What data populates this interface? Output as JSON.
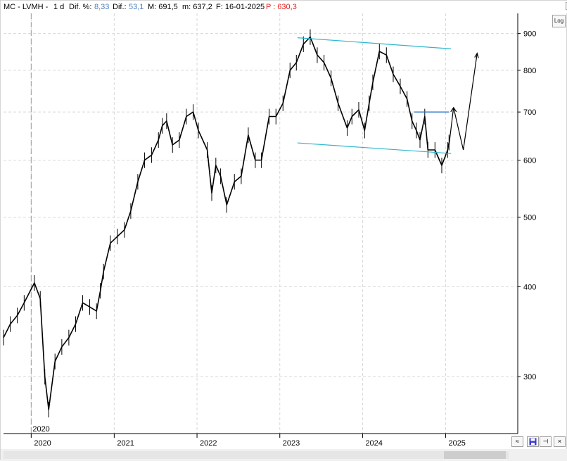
{
  "header": {
    "symbol": "MC - LVMH -",
    "period": "1 d",
    "dif_pct_label": "Dif. %:",
    "dif_pct_value": "8,33",
    "dif_label": "Dif.:",
    "dif_value": "53,1",
    "max_label": "M: 691,5",
    "min_label": "m: 637,2",
    "date_label": "F: 16-01-2025",
    "price_label": "P : 630,3"
  },
  "colors": {
    "dif_value": "#4a7fc1",
    "price": "#e02020",
    "trendline": "#2bb7cf",
    "resistance": "#1e6fc8",
    "price_line": "#000000",
    "grid": "#d8d8d8"
  },
  "icons": {
    "minimize": "minimize-icon",
    "maximize": "maximize-icon",
    "close": "close-icon",
    "wave": "wave-icon",
    "save": "save-icon",
    "pin": "pin-icon"
  },
  "controls": {
    "log_label": "Log",
    "min_glyph": "_",
    "max_glyph": "□",
    "close_glyph": "×",
    "wave_glyph": "≈",
    "pin_glyph": "⊣"
  },
  "chart_data": {
    "type": "line",
    "x_scale": "time",
    "y_scale": "log",
    "grid": true,
    "ylim": [
      250,
      960
    ],
    "x_range": [
      "2019-09-01",
      "2025-11-15"
    ],
    "y_ticks": [
      300,
      400,
      500,
      600,
      700,
      800,
      900
    ],
    "x_ticks": [
      "2020",
      "2021",
      "2022",
      "2023",
      "2024",
      "2025"
    ],
    "marker_label": "2020",
    "x": [
      "2019-09-01",
      "2019-10-01",
      "2019-11-01",
      "2019-12-01",
      "2020-01-15",
      "2020-02-10",
      "2020-03-01",
      "2020-03-18",
      "2020-04-15",
      "2020-05-15",
      "2020-06-15",
      "2020-07-15",
      "2020-08-15",
      "2020-09-15",
      "2020-10-15",
      "2020-11-01",
      "2020-11-15",
      "2020-12-15",
      "2021-01-15",
      "2021-02-15",
      "2021-03-15",
      "2021-04-15",
      "2021-05-15",
      "2021-06-15",
      "2021-07-15",
      "2021-08-01",
      "2021-08-20",
      "2021-09-15",
      "2021-10-15",
      "2021-11-15",
      "2021-12-15",
      "2022-01-07",
      "2022-02-15",
      "2022-03-07",
      "2022-03-25",
      "2022-04-15",
      "2022-05-12",
      "2022-06-15",
      "2022-07-15",
      "2022-08-15",
      "2022-09-15",
      "2022-10-12",
      "2022-11-15",
      "2022-12-15",
      "2023-01-15",
      "2023-02-15",
      "2023-03-15",
      "2023-04-15",
      "2023-05-15",
      "2023-06-15",
      "2023-07-15",
      "2023-08-15",
      "2023-09-15",
      "2023-10-25",
      "2023-11-15",
      "2023-12-15",
      "2024-01-10",
      "2024-01-30",
      "2024-02-15",
      "2024-03-15",
      "2024-04-15",
      "2024-05-15",
      "2024-06-15",
      "2024-07-15",
      "2024-08-06",
      "2024-08-25",
      "2024-09-10",
      "2024-10-01",
      "2024-10-15",
      "2024-11-15",
      "2024-12-15",
      "2025-01-10",
      "2025-01-16"
    ],
    "series": [
      {
        "values": [
          340,
          355,
          365,
          380,
          405,
          385,
          300,
          270,
          315,
          330,
          340,
          355,
          380,
          375,
          370,
          395,
          420,
          460,
          470,
          480,
          510,
          560,
          600,
          610,
          640,
          670,
          680,
          630,
          640,
          690,
          700,
          660,
          620,
          540,
          590,
          570,
          520,
          560,
          570,
          650,
          600,
          600,
          690,
          690,
          720,
          800,
          820,
          870,
          890,
          840,
          820,
          780,
          720,
          665,
          690,
          705,
          660,
          720,
          770,
          850,
          840,
          790,
          760,
          730,
          680,
          660,
          640,
          690,
          620,
          620,
          590,
          620,
          635
        ]
      }
    ],
    "projection": {
      "x": [
        "2025-01-16",
        "2025-02-05",
        "2025-03-20",
        "2025-05-20"
      ],
      "values": [
        630,
        710,
        620,
        845
      ]
    },
    "trendlines": [
      {
        "x": [
          "2023-03-20",
          "2025-01-25"
        ],
        "values": [
          888,
          857
        ]
      },
      {
        "x": [
          "2023-03-20",
          "2025-01-25"
        ],
        "values": [
          634,
          613
        ]
      }
    ],
    "resistance": {
      "x": [
        "2024-08-15",
        "2025-01-16"
      ],
      "values": [
        700,
        700
      ]
    }
  }
}
